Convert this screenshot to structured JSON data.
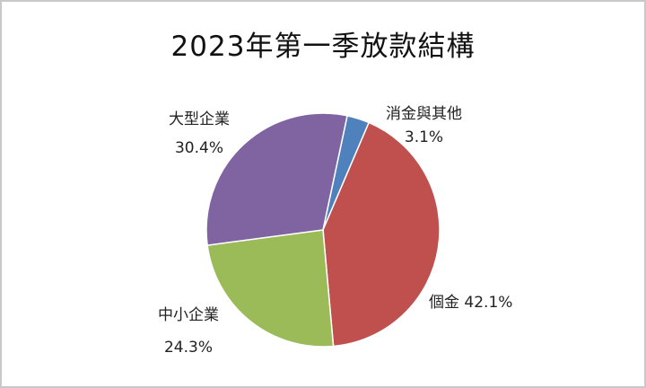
{
  "chart_data": {
    "type": "pie",
    "title": "2023年第一季放款結構",
    "legend": "none",
    "slices": [
      {
        "name": "消金與其他",
        "value": 3.1,
        "label_value": "3.1%",
        "color": "#4f81bd"
      },
      {
        "name": "個金",
        "value": 42.1,
        "label_value": "42.1%",
        "color": "#c0504d"
      },
      {
        "name": "中小企業",
        "value": 24.3,
        "label_value": "24.3%",
        "color": "#9bbb59"
      },
      {
        "name": "大型企業",
        "value": 30.4,
        "label_value": "30.4%",
        "color": "#8064a2"
      }
    ]
  }
}
